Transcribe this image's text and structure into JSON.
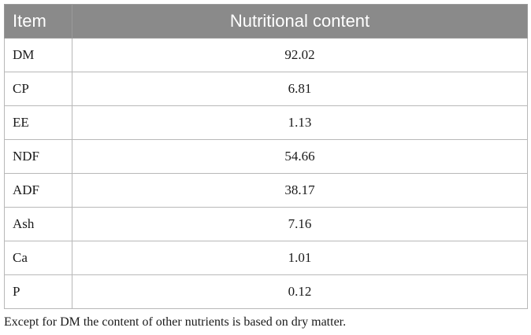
{
  "table": {
    "headers": {
      "item": "Item",
      "content": "Nutritional content"
    },
    "rows": [
      {
        "item": "DM",
        "value": "92.02"
      },
      {
        "item": "CP",
        "value": "6.81"
      },
      {
        "item": "EE",
        "value": "1.13"
      },
      {
        "item": "NDF",
        "value": "54.66"
      },
      {
        "item": "ADF",
        "value": "38.17"
      },
      {
        "item": "Ash",
        "value": "7.16"
      },
      {
        "item": "Ca",
        "value": "1.01"
      },
      {
        "item": "P",
        "value": "0.12"
      }
    ],
    "header_bg": "#8a8a8a",
    "header_text_color": "#ffffff"
  },
  "footnote": "Except for DM the content of other nutrients is based on dry matter."
}
